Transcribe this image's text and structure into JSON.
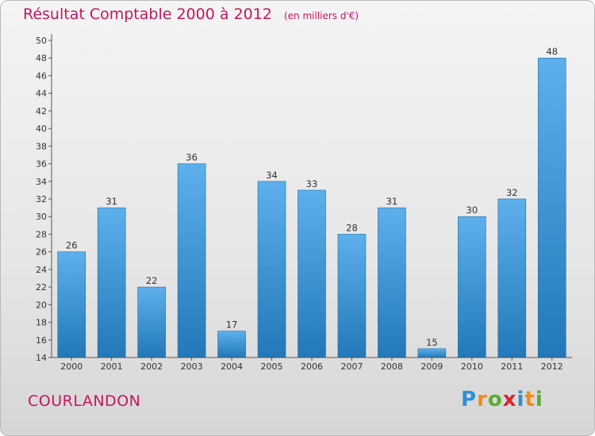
{
  "title": {
    "main": "Résultat Comptable 2000 à 2012",
    "unit": "(en milliers d'€)"
  },
  "commune": "COURLANDON",
  "logo": {
    "text": "Proxiti",
    "letters": [
      {
        "ch": "P",
        "color": "#2e8fd6"
      },
      {
        "ch": "r",
        "color": "#f08a1c"
      },
      {
        "ch": "o",
        "color": "#5aad2f"
      },
      {
        "ch": "x",
        "color": "#d9242c"
      },
      {
        "ch": "i",
        "color": "#2e8fd6"
      },
      {
        "ch": "t",
        "color": "#f08a1c"
      },
      {
        "ch": "i",
        "color": "#5aad2f"
      }
    ]
  },
  "colors": {
    "title": "#c2185b",
    "bar_top": "#5eb0ec",
    "bar_bottom": "#2278b8",
    "bar_edge": "#1f6ea8",
    "axis": "#555555"
  },
  "chart_data": {
    "type": "bar",
    "title": "Résultat Comptable 2000 à 2012",
    "subtitle": "(en milliers d'€)",
    "xlabel": "",
    "ylabel": "",
    "categories": [
      "2000",
      "2001",
      "2002",
      "2003",
      "2004",
      "2005",
      "2006",
      "2007",
      "2008",
      "2009",
      "2010",
      "2011",
      "2012"
    ],
    "values": [
      26,
      31,
      22,
      36,
      17,
      34,
      33,
      28,
      31,
      15,
      30,
      32,
      48
    ],
    "ylim": [
      14,
      50
    ],
    "yticks": [
      14,
      16,
      18,
      20,
      22,
      24,
      26,
      28,
      30,
      32,
      34,
      36,
      38,
      40,
      42,
      44,
      46,
      48,
      50
    ],
    "grid": false,
    "legend": "none"
  }
}
